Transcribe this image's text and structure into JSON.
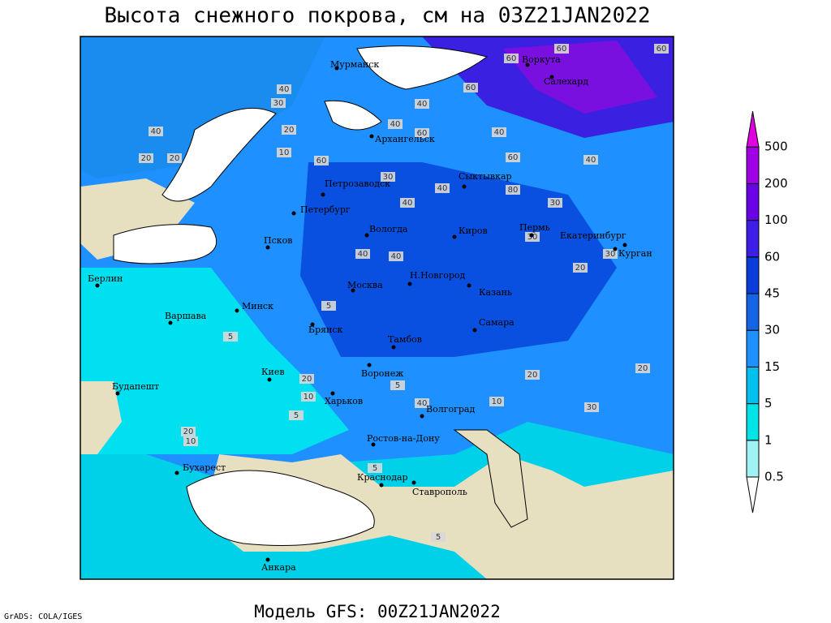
{
  "title": "Высота снежного покрова, см на 03Z21JAN2022",
  "footer": "Модель GFS: 00Z21JAN2022",
  "credit": "GrADS: COLA/IGES",
  "legend": {
    "levels": [
      0.5,
      1,
      5,
      15,
      30,
      45,
      60,
      100,
      200,
      500
    ]
  },
  "cities": [
    "Мурманск",
    "Воркута",
    "Салехард",
    "Архангельск",
    "Сыктывкар",
    "Петрозаводск",
    "Петербург",
    "Вологда",
    "Киров",
    "Пермь",
    "Екатеринбург",
    "Курган",
    "Псков",
    "Берлин",
    "Н.Новгород",
    "Москва",
    "Казань",
    "Минск",
    "Варшава",
    "Брянск",
    "Самара",
    "Тамбов",
    "Воронеж",
    "Киев",
    "Будапешт",
    "Харьков",
    "Волгоград",
    "Ростов-на-Дону",
    "Бухарест",
    "Краснодар",
    "Ставрополь",
    "Анкара"
  ],
  "contour_labels": [
    60,
    60,
    60,
    60,
    40,
    30,
    20,
    40,
    20,
    10,
    20,
    40,
    60,
    40,
    40,
    60,
    60,
    40,
    80,
    30,
    40,
    40,
    30,
    30,
    40,
    40,
    20,
    30,
    20,
    20,
    10,
    5,
    5,
    20,
    10,
    10,
    20,
    5,
    5,
    40,
    30,
    5,
    5
  ]
}
